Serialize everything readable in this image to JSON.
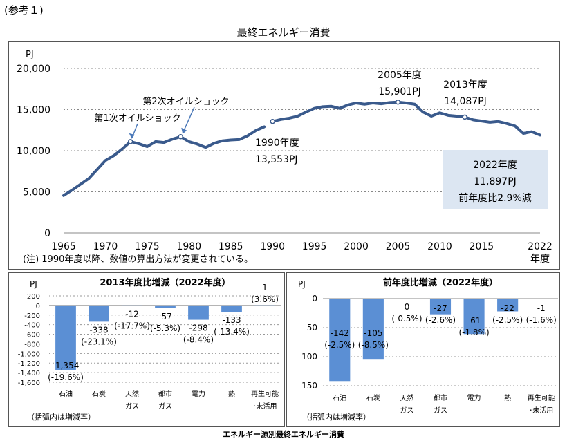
{
  "header": {
    "ref_label": "(参考１)",
    "bottom_caption": "エネルギー源別最終エネルギー消費"
  },
  "colors": {
    "line": "#3a5a8c",
    "bar": "#5b8fd4",
    "callout_bg": "#dce6f2"
  },
  "chart_data": [
    {
      "type": "line",
      "title": "最終エネルギー消費",
      "ylabel": "PJ",
      "xlabel": "年度",
      "ylim": [
        0,
        20000
      ],
      "yticks": [
        "0",
        "5,000",
        "10,000",
        "15,000",
        "20,000"
      ],
      "xticks": [
        "1965",
        "1970",
        "1975",
        "1980",
        "1985",
        "1990",
        "1995",
        "2000",
        "2005",
        "2010",
        "2015",
        "2022"
      ],
      "note": "(注) 1990年度以降、数値の算出方法が変更されている。",
      "series": [
        {
          "x": [
            1965,
            1966,
            1967,
            1968,
            1969,
            1970,
            1971,
            1972,
            1973,
            1974,
            1975,
            1976,
            1977,
            1978,
            1979,
            1980,
            1981,
            1982,
            1983,
            1984,
            1985,
            1986,
            1987,
            1988,
            1989
          ],
          "values": [
            4550,
            5200,
            5900,
            6600,
            7700,
            8800,
            9400,
            10200,
            11100,
            10850,
            10500,
            11100,
            11000,
            11400,
            11700,
            11100,
            10800,
            10400,
            10900,
            11200,
            11300,
            11350,
            11800,
            12450,
            12900
          ]
        },
        {
          "x": [
            1990,
            1991,
            1992,
            1993,
            1994,
            1995,
            1996,
            1997,
            1998,
            1999,
            2000,
            2001,
            2002,
            2003,
            2004,
            2005,
            2006,
            2007,
            2008,
            2009,
            2010,
            2011,
            2012,
            2013,
            2014,
            2015,
            2016,
            2017,
            2018,
            2019,
            2020,
            2021,
            2022
          ],
          "values": [
            13553,
            13800,
            13950,
            14200,
            14700,
            15150,
            15350,
            15400,
            15150,
            15550,
            15800,
            15650,
            15800,
            15700,
            15850,
            15901,
            15800,
            15650,
            14700,
            14200,
            14600,
            14300,
            14200,
            14087,
            13750,
            13600,
            13450,
            13550,
            13300,
            13000,
            12100,
            12300,
            11897
          ]
        }
      ],
      "annotations": [
        {
          "label": "第1次オイルショック"
        },
        {
          "label": "第2次オイルショック"
        },
        {
          "line1": "1990年度",
          "line2": "13,553PJ"
        },
        {
          "line1": "2005年度",
          "line2": "15,901PJ"
        },
        {
          "line1": "2013年度",
          "line2": "14,087PJ"
        }
      ],
      "callout": [
        "2022年度",
        "11,897PJ",
        "前年度比2.9%減"
      ]
    },
    {
      "type": "bar",
      "title": "2013年度比増減（2022年度）",
      "ylabel": "PJ",
      "ylim": [
        -1600,
        200
      ],
      "yticks": [
        "200",
        "0",
        "-200",
        "-400",
        "-600",
        "-800",
        "-1,000",
        "-1,200",
        "-1,400",
        "-1,600"
      ],
      "categories": [
        [
          "石油"
        ],
        [
          "石炭"
        ],
        [
          "天然",
          "ガス"
        ],
        [
          "都市",
          "ガス"
        ],
        [
          "電力"
        ],
        [
          "熱"
        ],
        [
          "再生可能",
          "･未活用"
        ]
      ],
      "values": [
        -1354,
        -338,
        -12,
        -57,
        -298,
        -133,
        1
      ],
      "value_labels": [
        "-1,354",
        "-338",
        "-12",
        "-57",
        "-298",
        "-133",
        "1"
      ],
      "rate_labels": [
        "(-19.6%)",
        "(-23.1%)",
        "(-17.7%)",
        "(-5.3%)",
        "(-8.4%)",
        "(-13.4%)",
        "(3.6%)"
      ],
      "note": "（括弧内は増減率）"
    },
    {
      "type": "bar",
      "title": "前年度比増減（2022年度）",
      "ylabel": "PJ",
      "ylim": [
        -150,
        0
      ],
      "yticks": [
        "0",
        "-50",
        "-100",
        "-150"
      ],
      "categories": [
        [
          "石油"
        ],
        [
          "石炭"
        ],
        [
          "天然",
          "ガス"
        ],
        [
          "都市",
          "ガス"
        ],
        [
          "電力"
        ],
        [
          "熱"
        ],
        [
          "再生可能",
          "･未活用"
        ]
      ],
      "values": [
        -142,
        -105,
        0,
        -27,
        -61,
        -22,
        -1
      ],
      "value_labels": [
        "-142",
        "-105",
        "0",
        "-27",
        "-61",
        "-22",
        "-1"
      ],
      "rate_labels": [
        "(-2.5%)",
        "(-8.5%)",
        "(-0.5%)",
        "(-2.6%)",
        "(-1.8%)",
        "(-2.5%)",
        "(-1.6%)"
      ],
      "note": "（括弧内は増減率）"
    }
  ]
}
